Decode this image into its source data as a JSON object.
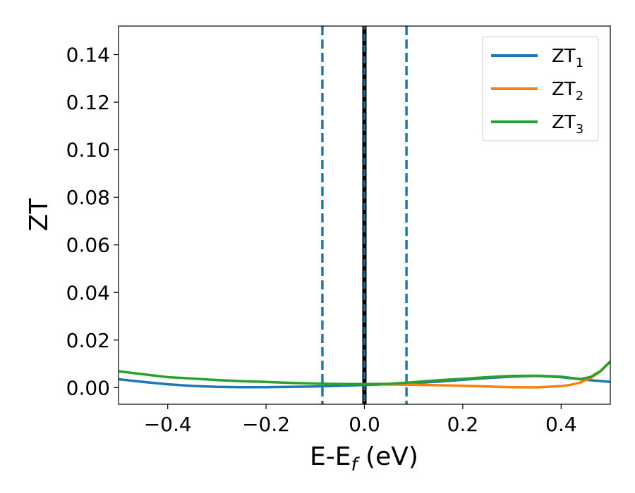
{
  "chart_data": {
    "type": "line",
    "title": "",
    "xlabel": "E-E",
    "xlabel_sub": "f",
    "xlabel_unit": " (eV)",
    "ylabel": "ZT",
    "xlim": [
      -0.5,
      0.5
    ],
    "ylim": [
      -0.007,
      0.152
    ],
    "xticks": [
      -0.4,
      -0.2,
      0.0,
      0.2,
      0.4
    ],
    "xtick_labels": [
      "−0.4",
      "−0.2",
      "0.0",
      "0.2",
      "0.4"
    ],
    "yticks": [
      0.0,
      0.02,
      0.04,
      0.06,
      0.08,
      0.1,
      0.12,
      0.14
    ],
    "ytick_labels": [
      "0.00",
      "0.02",
      "0.04",
      "0.06",
      "0.08",
      "0.10",
      "0.12",
      "0.14"
    ],
    "grid": false,
    "legend": "top-right",
    "vlines": [
      {
        "x": 0.0,
        "style": "solid-black",
        "color": "#000000"
      },
      {
        "x": 0.0,
        "style": "solid",
        "color": "#1f77b4"
      },
      {
        "x": -0.0855,
        "style": "dashed",
        "color": "#1f77b4"
      },
      {
        "x": 0.0855,
        "style": "dashed",
        "color": "#1f77b4"
      }
    ],
    "series": [
      {
        "name": "ZT",
        "name_sub": "1",
        "color": "#1f77b4",
        "x": [
          -0.5,
          -0.45,
          -0.4,
          -0.35,
          -0.3,
          -0.25,
          -0.2,
          -0.15,
          -0.1,
          -0.05,
          0.0,
          0.05,
          0.1,
          0.15,
          0.2,
          0.25,
          0.3,
          0.35,
          0.4,
          0.45,
          0.5
        ],
        "y": [
          0.0035,
          0.0024,
          0.0014,
          0.0007,
          0.0003,
          0.0002,
          0.0002,
          0.0003,
          0.0005,
          0.0008,
          0.0011,
          0.0014,
          0.0019,
          0.0025,
          0.0033,
          0.004,
          0.0046,
          0.0049,
          0.0044,
          0.0033,
          0.0024
        ]
      },
      {
        "name": "ZT",
        "name_sub": "2",
        "color": "#ff7f0e",
        "x": [
          0.0,
          0.05,
          0.1,
          0.15,
          0.2,
          0.25,
          0.3,
          0.35,
          0.4,
          0.42,
          0.44,
          0.46,
          0.48,
          0.5
        ],
        "y": [
          0.0015,
          0.0013,
          0.0012,
          0.001,
          0.0008,
          0.0005,
          0.0002,
          0.0001,
          0.0006,
          0.0012,
          0.0022,
          0.004,
          0.0068,
          0.011
        ]
      },
      {
        "name": "ZT",
        "name_sub": "3",
        "color": "#2ca02c",
        "x": [
          -0.5,
          -0.45,
          -0.4,
          -0.35,
          -0.3,
          -0.25,
          -0.2,
          -0.15,
          -0.1,
          -0.05,
          0.0,
          0.05,
          0.1,
          0.15,
          0.2,
          0.25,
          0.3,
          0.35,
          0.4,
          0.44,
          0.46,
          0.48,
          0.5
        ],
        "y": [
          0.0069,
          0.0056,
          0.0044,
          0.0038,
          0.0032,
          0.0027,
          0.0024,
          0.002,
          0.0017,
          0.0015,
          0.0015,
          0.0016,
          0.0023,
          0.0031,
          0.0037,
          0.0044,
          0.0049,
          0.005,
          0.0046,
          0.0036,
          0.0045,
          0.007,
          0.011
        ]
      }
    ]
  }
}
